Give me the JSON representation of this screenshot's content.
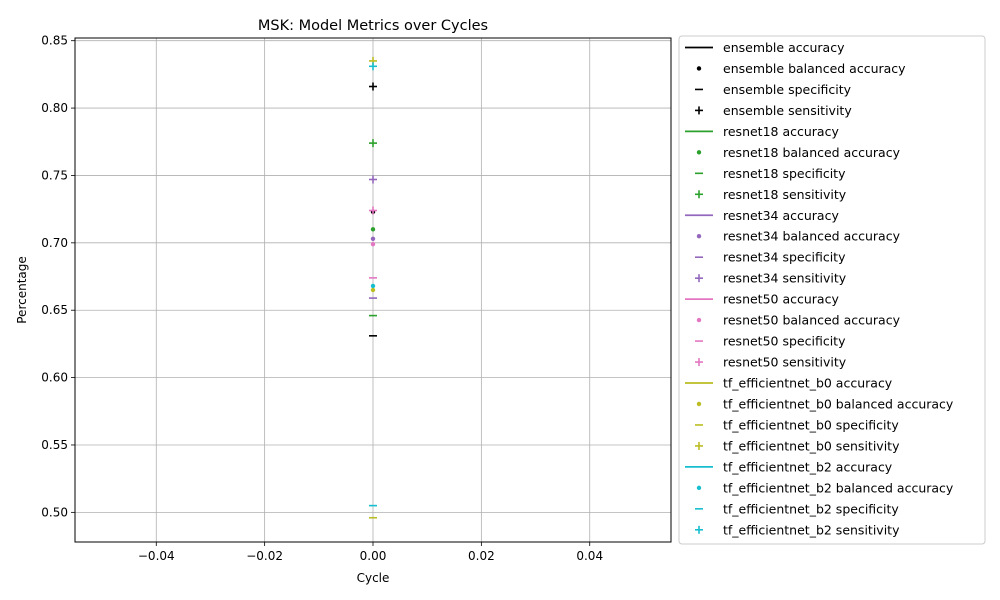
{
  "chart_data": {
    "type": "scatter",
    "title": "MSK: Model Metrics over Cycles",
    "xlabel": "Cycle",
    "ylabel": "Percentage",
    "xlim": [
      -0.055,
      0.055
    ],
    "ylim": [
      0.478,
      0.852
    ],
    "xticks": [
      -0.04,
      -0.02,
      0.0,
      0.02,
      0.04
    ],
    "xtick_labels": [
      "−0.04",
      "−0.02",
      "0.00",
      "0.02",
      "0.04"
    ],
    "yticks": [
      0.5,
      0.55,
      0.6,
      0.65,
      0.7,
      0.75,
      0.8,
      0.85
    ],
    "ytick_labels": [
      "0.50",
      "0.55",
      "0.60",
      "0.65",
      "0.70",
      "0.75",
      "0.80",
      "0.85"
    ],
    "grid": true,
    "legend_position": "outside-right",
    "metrics": [
      {
        "key": "accuracy",
        "label": "accuracy",
        "marker": "line"
      },
      {
        "key": "balanced_accuracy",
        "label": "balanced accuracy",
        "marker": "dot"
      },
      {
        "key": "specificity",
        "label": "specificity",
        "marker": "dash"
      },
      {
        "key": "sensitivity",
        "label": "sensitivity",
        "marker": "plus"
      }
    ],
    "series": [
      {
        "name": "ensemble",
        "color": "#000000",
        "accuracy": 0.723,
        "balanced_accuracy": 0.723,
        "specificity": 0.631,
        "sensitivity": 0.816
      },
      {
        "name": "resnet18",
        "color": "#2ca02c",
        "accuracy": 0.71,
        "balanced_accuracy": 0.71,
        "specificity": 0.646,
        "sensitivity": 0.774
      },
      {
        "name": "resnet34",
        "color": "#9467bd",
        "accuracy": 0.703,
        "balanced_accuracy": 0.703,
        "specificity": 0.659,
        "sensitivity": 0.747
      },
      {
        "name": "resnet50",
        "color": "#e377c2",
        "accuracy": 0.699,
        "balanced_accuracy": 0.699,
        "specificity": 0.674,
        "sensitivity": 0.724
      },
      {
        "name": "tf_efficientnet_b0",
        "color": "#bcbd22",
        "accuracy": 0.665,
        "balanced_accuracy": 0.665,
        "specificity": 0.496,
        "sensitivity": 0.835
      },
      {
        "name": "tf_efficientnet_b2",
        "color": "#17becf",
        "accuracy": 0.668,
        "balanced_accuracy": 0.668,
        "specificity": 0.505,
        "sensitivity": 0.831
      }
    ],
    "points_x": 0.0
  }
}
